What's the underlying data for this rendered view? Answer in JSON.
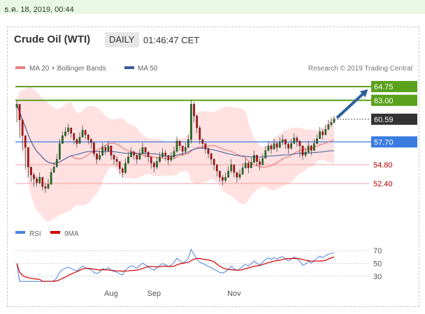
{
  "header": {
    "date_stamp": "ธ.ค. 18, 2019, 00:44"
  },
  "chart_header": {
    "title": "Crude Oil (WTI)",
    "period": "DAILY",
    "time": "01:46:47 CET"
  },
  "legend": {
    "ma_bb": "MA 20 + Bollinger Bands",
    "ma50": "MA 50",
    "credit": "Research © 2019 Trading Central"
  },
  "rsi_legend": {
    "rsi": "RSI",
    "ma9": "9MA"
  },
  "colors": {
    "resistance": "#5aa11b",
    "support_label": "#b00000",
    "pivot": "#3a7be0",
    "bollinger_fill": "#ffd9d9",
    "ma20": "#e8807a",
    "ma50": "#3a5a9a",
    "bull": "#1d7a1d",
    "bear": "#cc0000",
    "rsi": "#4a7fe0",
    "rsi_ma": "#d00000",
    "arrow": "#2d5f9e"
  },
  "chart_data": {
    "type": "candlestick",
    "ylim": [
      50.0,
      66.0
    ],
    "x_ticks": [
      "Aug",
      "Sep",
      "Nov"
    ],
    "last_price": "60.59",
    "levels": [
      {
        "label": "64.75",
        "value": 64.75,
        "kind": "resistance"
      },
      {
        "label": "63.00",
        "value": 63.0,
        "kind": "resistance"
      },
      {
        "label": "57.70",
        "value": 57.7,
        "kind": "pivot"
      },
      {
        "label": "54.80",
        "value": 54.8,
        "kind": "support"
      },
      {
        "label": "52.40",
        "value": 52.4,
        "kind": "support"
      }
    ],
    "close": [
      62.5,
      60.5,
      58.5,
      57.0,
      54.5,
      53.5,
      53.0,
      52.5,
      53.2,
      52.0,
      51.8,
      52.3,
      53.8,
      54.5,
      55.5,
      57.5,
      58.5,
      59.0,
      59.5,
      58.8,
      58.0,
      57.5,
      58.3,
      59.2,
      58.6,
      58.0,
      57.6,
      56.2,
      55.5,
      56.0,
      57.0,
      56.6,
      57.2,
      56.0,
      55.5,
      55.2,
      54.3,
      53.8,
      55.0,
      55.8,
      56.4,
      56.0,
      55.5,
      56.2,
      57.0,
      56.4,
      55.8,
      55.0,
      54.5,
      55.2,
      55.8,
      56.3,
      56.0,
      55.4,
      55.8,
      56.5,
      57.8,
      57.2,
      56.5,
      57.0,
      58.0,
      62.5,
      61.0,
      59.5,
      58.0,
      57.5,
      56.8,
      56.2,
      55.5,
      54.8,
      54.0,
      53.2,
      52.8,
      53.2,
      54.0,
      54.8,
      53.8,
      53.2,
      53.6,
      54.4,
      55.0,
      54.4,
      55.1,
      56.0,
      55.2,
      54.8,
      55.6,
      56.6,
      57.2,
      56.8,
      57.5,
      57.0,
      57.7,
      58.0,
      57.4,
      56.9,
      57.5,
      58.2,
      57.8,
      57.2,
      56.0,
      56.4,
      57.2,
      56.6,
      57.5,
      58.1,
      59.0,
      58.6,
      59.3,
      59.9,
      60.2,
      60.59
    ],
    "high": [
      63.0,
      61.2,
      59.3,
      57.8,
      55.3,
      54.2,
      53.8,
      53.3,
      53.8,
      53.0,
      52.5,
      53.0,
      54.3,
      55.1,
      56.2,
      58.1,
      59.0,
      59.6,
      60.0,
      59.5,
      58.6,
      58.2,
      58.9,
      59.8,
      59.2,
      58.7,
      58.2,
      57.2,
      56.1,
      56.6,
      57.6,
      57.3,
      57.8,
      57.0,
      56.2,
      55.9,
      55.2,
      54.5,
      55.6,
      56.4,
      57.0,
      56.6,
      56.2,
      56.8,
      57.6,
      57.0,
      56.5,
      55.8,
      55.2,
      55.8,
      56.4,
      56.9,
      56.7,
      56.0,
      56.4,
      57.1,
      58.4,
      57.9,
      57.2,
      57.6,
      58.6,
      63.0,
      62.8,
      61.2,
      59.8,
      58.2,
      57.5,
      57.0,
      56.3,
      55.6,
      54.8,
      54.0,
      53.5,
      53.8,
      54.6,
      55.5,
      54.8,
      53.9,
      54.2,
      55.0,
      55.6,
      55.2,
      55.7,
      56.6,
      56.1,
      55.6,
      56.2,
      57.2,
      57.8,
      57.5,
      58.1,
      57.7,
      58.3,
      58.6,
      58.1,
      57.6,
      58.1,
      58.8,
      58.5,
      57.9,
      57.2,
      57.0,
      57.8,
      57.3,
      58.1,
      58.7,
      59.6,
      59.3,
      59.9,
      60.5,
      60.8,
      61.0
    ],
    "low": [
      60.2,
      58.2,
      56.6,
      54.2,
      53.2,
      52.6,
      52.0,
      52.0,
      52.3,
      51.5,
      51.2,
      51.6,
      53.0,
      53.8,
      54.8,
      55.4,
      57.7,
      58.3,
      58.6,
      58.2,
      57.4,
      57.0,
      57.5,
      58.4,
      58.0,
      57.4,
      56.8,
      55.8,
      54.9,
      55.3,
      55.9,
      56.0,
      56.4,
      55.4,
      54.8,
      54.6,
      53.6,
      53.2,
      53.6,
      54.9,
      55.7,
      55.4,
      54.9,
      55.4,
      56.1,
      55.7,
      55.1,
      54.3,
      53.8,
      54.2,
      55.0,
      55.6,
      55.3,
      54.7,
      55.1,
      55.5,
      56.3,
      56.6,
      55.9,
      56.2,
      56.9,
      57.5,
      60.2,
      58.8,
      57.4,
      56.8,
      56.2,
      55.6,
      54.8,
      54.1,
      53.3,
      52.6,
      52.2,
      52.5,
      53.1,
      53.7,
      53.2,
      52.5,
      52.9,
      53.5,
      54.3,
      53.7,
      54.4,
      55.0,
      54.6,
      54.1,
      54.7,
      55.8,
      56.5,
      56.2,
      56.7,
      56.4,
      56.9,
      57.3,
      56.8,
      56.2,
      56.7,
      57.5,
      57.1,
      55.7,
      55.4,
      55.7,
      56.2,
      56.0,
      56.6,
      57.4,
      58.2,
      58.0,
      58.6,
      59.2,
      59.6,
      60.0
    ]
  }
}
